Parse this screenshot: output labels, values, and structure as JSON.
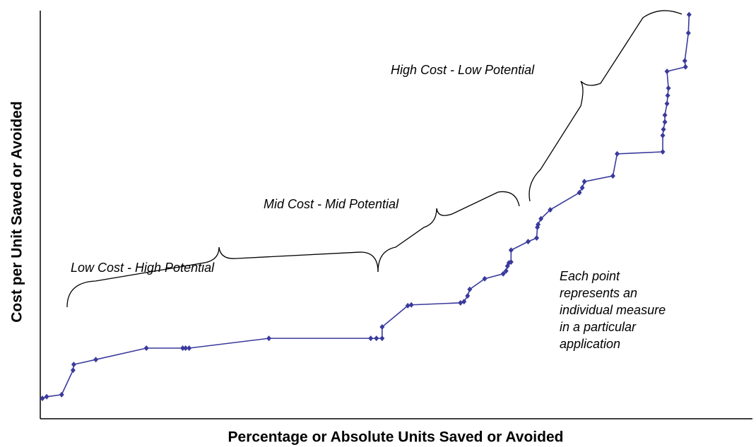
{
  "chart_data": {
    "type": "line",
    "x_label": "Percentage or Absolute Units Saved or Avoided",
    "y_label": "Cost per Unit Saved or Avoided",
    "annotations": [
      "High Cost - Low Potential",
      "Mid Cost - Mid Potential",
      "Low Cost - High Potential"
    ],
    "note": [
      "Each point",
      "represents an",
      "individual measure",
      "in a particular",
      "application"
    ],
    "xlim": [
      0,
      100
    ],
    "ylim": [
      0,
      100
    ],
    "series": [
      {
        "color": "#3a3a9c",
        "x": [
          0.3,
          0.9,
          3.0,
          4.6,
          4.7,
          7.8,
          14.9,
          20.0,
          20.4,
          20.9,
          32.1,
          46.4,
          47.2,
          48.0,
          48.0,
          51.6,
          52.1,
          59.0,
          59.5,
          60.0,
          60.3,
          62.4,
          65.0,
          65.4,
          65.6,
          65.8,
          66.1,
          66.1,
          68.5,
          69.7,
          69.8,
          69.9,
          70.3,
          71.6,
          75.7,
          76.1,
          76.4,
          80.4,
          81.0,
          87.4,
          87.4,
          87.5,
          87.7,
          87.7,
          88.0,
          88.1,
          88.2,
          88.0,
          90.6,
          90.5,
          91.0,
          91.1
        ],
        "values": [
          5.0,
          5.4,
          5.9,
          11.9,
          13.3,
          14.5,
          17.3,
          17.3,
          17.3,
          17.3,
          19.7,
          19.7,
          19.7,
          19.7,
          22.5,
          27.7,
          27.9,
          28.4,
          28.7,
          30.1,
          31.7,
          34.3,
          35.5,
          36.2,
          37.4,
          38.2,
          38.4,
          41.3,
          43.4,
          44.3,
          46.9,
          47.6,
          49.0,
          51.2,
          55.4,
          56.6,
          58.1,
          59.5,
          64.9,
          65.4,
          69.4,
          70.9,
          72.7,
          74.4,
          77.2,
          79.2,
          81.0,
          85.1,
          86.2,
          87.7,
          94.5,
          99.0
        ]
      }
    ]
  }
}
